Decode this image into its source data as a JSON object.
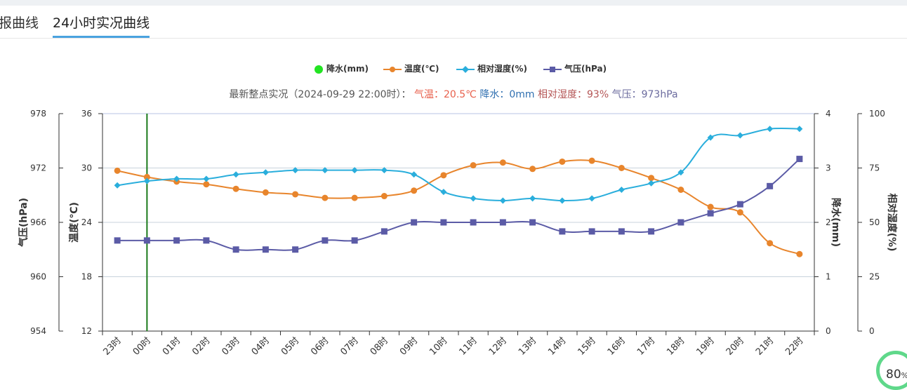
{
  "tabs": [
    {
      "label": "报曲线"
    },
    {
      "label": "24小时实况曲线"
    }
  ],
  "legend": [
    {
      "label": "降水(mm)",
      "color": "#22e422",
      "marker": "circle"
    },
    {
      "label": "温度(℃)",
      "color": "#e8852c",
      "marker": "circle-line"
    },
    {
      "label": "相对湿度(%)",
      "color": "#2aaedc",
      "marker": "diamond-line"
    },
    {
      "label": "气压(hPa)",
      "color": "#5b5ba6",
      "marker": "square-line"
    }
  ],
  "subtitle": {
    "prefix": "最新整点实况（2024-09-29 22:00时）：",
    "temp": "气温：20.5℃",
    "rain": "降水：0mm",
    "humidity": "相对湿度：93%",
    "pressure": "气压：973hPa",
    "temp_color": "#e8604c",
    "rain_color": "#2f6fb0",
    "humidity_color": "#b55656",
    "pressure_color": "#6b6b9e"
  },
  "badge": {
    "value": "80",
    "unit": "%"
  },
  "chart_data": {
    "type": "line",
    "categories": [
      "23时",
      "00时",
      "01时",
      "02时",
      "03时",
      "04时",
      "05时",
      "06时",
      "07时",
      "08时",
      "09时",
      "10时",
      "11时",
      "12时",
      "13时",
      "14时",
      "15时",
      "16时",
      "17时",
      "18时",
      "19时",
      "20时",
      "21时",
      "22时"
    ],
    "axes": {
      "pressure": {
        "label": "气压(hPa)",
        "min": 954,
        "max": 978,
        "ticks": [
          954,
          960,
          966,
          972,
          978
        ]
      },
      "temperature": {
        "label": "温度(℃)",
        "min": 12,
        "max": 36,
        "ticks": [
          12,
          18,
          24,
          30,
          36
        ]
      },
      "rain": {
        "label": "降水(mm)",
        "min": 0,
        "max": 4,
        "ticks": [
          0,
          1,
          2,
          3,
          4
        ]
      },
      "humidity": {
        "label": "相对湿度(%)",
        "min": 0,
        "max": 100,
        "ticks": [
          0,
          25,
          50,
          75,
          100
        ]
      }
    },
    "series": [
      {
        "name": "温度(℃)",
        "axis": "temperature",
        "color": "#e8852c",
        "marker": "circle",
        "values": [
          29.7,
          29.0,
          28.5,
          28.2,
          27.7,
          27.3,
          27.1,
          26.7,
          26.7,
          26.9,
          27.5,
          29.2,
          30.3,
          30.6,
          29.9,
          30.7,
          30.8,
          30.0,
          28.9,
          27.6,
          25.7,
          25.1,
          21.7,
          20.5
        ]
      },
      {
        "name": "相对湿度(%)",
        "axis": "humidity",
        "color": "#2aaedc",
        "marker": "diamond",
        "values": [
          67,
          69,
          70,
          70,
          72,
          73,
          74,
          74,
          74,
          74,
          72,
          64,
          61,
          60,
          61,
          60,
          61,
          65,
          68,
          73,
          89,
          90,
          93,
          93
        ]
      },
      {
        "name": "气压(hPa)",
        "axis": "pressure",
        "color": "#5b5ba6",
        "marker": "square",
        "values": [
          964,
          964,
          964,
          964,
          963,
          963,
          963,
          964,
          964,
          965,
          966,
          966,
          966,
          966,
          966,
          965,
          965,
          965,
          965,
          966,
          967,
          968,
          970,
          973
        ]
      }
    ],
    "vertical_marker": {
      "category_index": 1,
      "color": "#1a7a1a"
    },
    "grid": true
  }
}
